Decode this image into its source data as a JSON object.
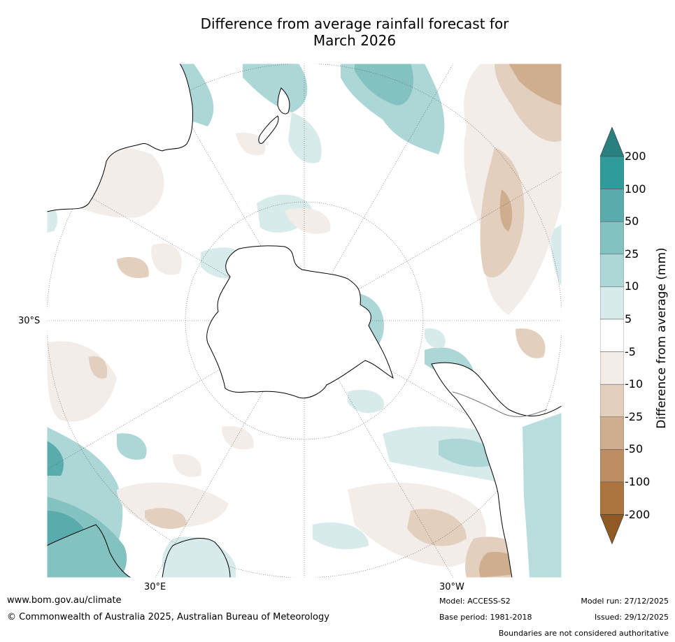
{
  "title_line1": "Difference from average rainfall forecast for",
  "title_line2": "March 2026",
  "map": {
    "projection": "south-polar-stereographic",
    "lat_label": "30°S",
    "lon_labels": [
      "30°E",
      "30°W"
    ]
  },
  "colorbar": {
    "title": "Difference from average (mm)",
    "levels": [
      "200",
      "100",
      "50",
      "25",
      "10",
      "5",
      "-5",
      "-10",
      "-25",
      "-50",
      "-100",
      "-200"
    ],
    "colors": [
      "#2a7f7f",
      "#319a9a",
      "#5aacac",
      "#84c2c2",
      "#add6d6",
      "#d6ebea",
      "#ffffff",
      "#f2ede8",
      "#e3cfbd",
      "#cfae90",
      "#bd8d63",
      "#ab743e",
      "#8f5a24"
    ]
  },
  "footer": {
    "url": "www.bom.gov.au/climate",
    "copyright": "© Commonwealth of Australia 2025, Australian Bureau of Meteorology",
    "model": "Model: ACCESS-S2",
    "base_period": "Base period: 1981-2018",
    "model_run": "Model run: 27/12/2025",
    "issued": "Issued: 29/12/2025",
    "disclaimer": "Boundaries are not considered authoritative"
  }
}
